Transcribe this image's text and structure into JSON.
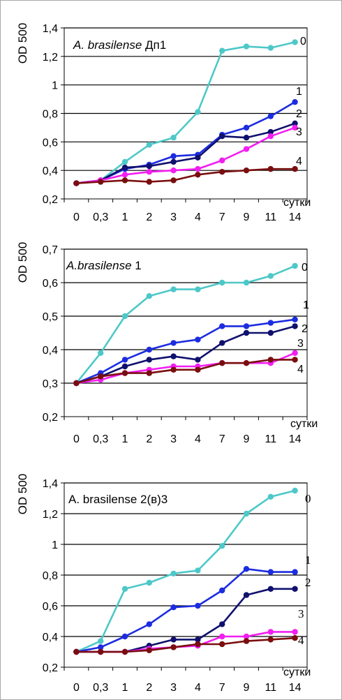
{
  "chart_data": [
    {
      "type": "line",
      "title_italic": "A. brasilense",
      "title_rest": " Дп1",
      "ylabel": "OD 500",
      "xlabel": "сутки",
      "categories": [
        "0",
        "0,3",
        "1",
        "2",
        "3",
        "4",
        "7",
        "9",
        "11",
        "14"
      ],
      "ylim": [
        0.2,
        1.4
      ],
      "yticks": [
        "0,2",
        "0,4",
        "0,6",
        "0,8",
        "1",
        "1,2",
        "1,4"
      ],
      "series": [
        {
          "name": "0",
          "color": "#4dc8c8",
          "values": [
            0.31,
            0.33,
            0.46,
            0.58,
            0.63,
            0.81,
            1.24,
            1.27,
            1.26,
            1.3
          ]
        },
        {
          "name": "1",
          "color": "#1c2ce0",
          "values": [
            0.31,
            0.33,
            0.41,
            0.44,
            0.5,
            0.51,
            0.65,
            0.7,
            0.78,
            0.88
          ]
        },
        {
          "name": "2",
          "color": "#10106e",
          "values": [
            0.31,
            0.33,
            0.42,
            0.43,
            0.46,
            0.49,
            0.64,
            0.63,
            0.67,
            0.73
          ]
        },
        {
          "name": "3",
          "color": "#f21ef2",
          "values": [
            0.31,
            0.33,
            0.37,
            0.39,
            0.4,
            0.41,
            0.47,
            0.55,
            0.64,
            0.7
          ]
        },
        {
          "name": "4",
          "color": "#7a0e0e",
          "values": [
            0.31,
            0.32,
            0.33,
            0.32,
            0.33,
            0.37,
            0.39,
            0.4,
            0.41,
            0.41
          ]
        }
      ]
    },
    {
      "type": "line",
      "title_italic": "A.brasilense",
      "title_rest": " 1",
      "ylabel": "OD 500",
      "xlabel": "сутки",
      "categories": [
        "0",
        "0,3",
        "1",
        "2",
        "3",
        "4",
        "7",
        "9",
        "11",
        "14"
      ],
      "ylim": [
        0.2,
        0.7
      ],
      "yticks": [
        "0,2",
        "0,3",
        "0,4",
        "0,5",
        "0,6",
        "0,7"
      ],
      "series": [
        {
          "name": "0",
          "color": "#4dc8c8",
          "values": [
            0.3,
            0.39,
            0.5,
            0.56,
            0.58,
            0.58,
            0.6,
            0.6,
            0.62,
            0.65
          ]
        },
        {
          "name": "1",
          "color": "#1c2ce0",
          "values": [
            0.3,
            0.33,
            0.37,
            0.4,
            0.42,
            0.43,
            0.47,
            0.47,
            0.48,
            0.49
          ]
        },
        {
          "name": "2",
          "color": "#10106e",
          "values": [
            0.3,
            0.32,
            0.35,
            0.37,
            0.38,
            0.37,
            0.42,
            0.45,
            0.45,
            0.47
          ]
        },
        {
          "name": "3",
          "color": "#f21ef2",
          "values": [
            0.3,
            0.31,
            0.33,
            0.34,
            0.35,
            0.35,
            0.36,
            0.36,
            0.36,
            0.39
          ]
        },
        {
          "name": "4",
          "color": "#7a0e0e",
          "values": [
            0.3,
            0.32,
            0.33,
            0.33,
            0.34,
            0.34,
            0.36,
            0.36,
            0.37,
            0.37
          ]
        }
      ]
    },
    {
      "type": "line",
      "title_italic": "",
      "title_rest": "A. brasilense 2(в)3",
      "ylabel": "OD 500",
      "xlabel": "сутки",
      "categories": [
        "0",
        "0,3",
        "1",
        "2",
        "3",
        "4",
        "7",
        "9",
        "11",
        "14"
      ],
      "ylim": [
        0.2,
        1.4
      ],
      "yticks": [
        "0,2",
        "0,4",
        "0,6",
        "0,8",
        "1",
        "1,2",
        "1,4"
      ],
      "series": [
        {
          "name": "0",
          "color": "#4dc8c8",
          "values": [
            0.3,
            0.37,
            0.71,
            0.75,
            0.81,
            0.83,
            0.99,
            1.2,
            1.31,
            1.35
          ]
        },
        {
          "name": "1",
          "color": "#1c2ce0",
          "values": [
            0.3,
            0.33,
            0.4,
            0.48,
            0.59,
            0.6,
            0.7,
            0.84,
            0.82,
            0.82
          ]
        },
        {
          "name": "2",
          "color": "#10106e",
          "values": [
            0.3,
            0.3,
            0.3,
            0.34,
            0.38,
            0.38,
            0.48,
            0.67,
            0.71,
            0.71
          ]
        },
        {
          "name": "3",
          "color": "#f21ef2",
          "values": [
            0.3,
            0.3,
            0.3,
            0.32,
            0.33,
            0.34,
            0.4,
            0.4,
            0.43,
            0.43
          ]
        },
        {
          "name": "4",
          "color": "#7a0e0e",
          "values": [
            0.3,
            0.3,
            0.3,
            0.31,
            0.33,
            0.35,
            0.35,
            0.37,
            0.38,
            0.39
          ]
        }
      ]
    }
  ]
}
